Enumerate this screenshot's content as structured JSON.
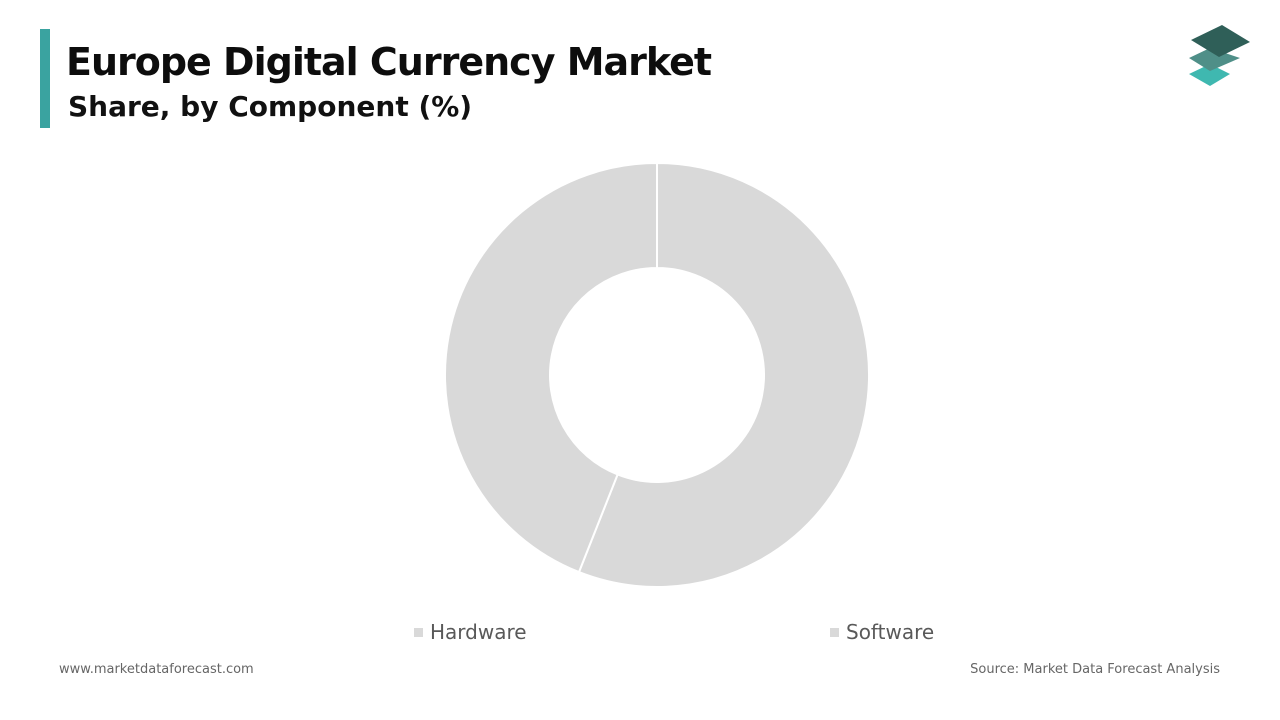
{
  "header": {
    "title": "Europe Digital Currency Market",
    "subtitle": "Share, by Component (%)"
  },
  "colors": {
    "accent": "#3aa3a0",
    "slice": "#d9d9d9",
    "slice_border": "#ffffff",
    "logo_top": "#2f5f58",
    "logo_mid": "#4f8f88",
    "logo_bottom": "#3fb8b0"
  },
  "logo": {
    "icon": "stacked-layers-icon"
  },
  "chart_data": {
    "type": "pie",
    "donut": true,
    "categories": [
      "Hardware",
      "Software"
    ],
    "values": [
      44,
      56
    ],
    "legend_position": "bottom"
  },
  "legend": {
    "items": [
      {
        "label": "Hardware"
      },
      {
        "label": "Software"
      }
    ]
  },
  "footer": {
    "website": "www.marketdataforecast.com",
    "source": "Source: Market Data Forecast Analysis"
  }
}
